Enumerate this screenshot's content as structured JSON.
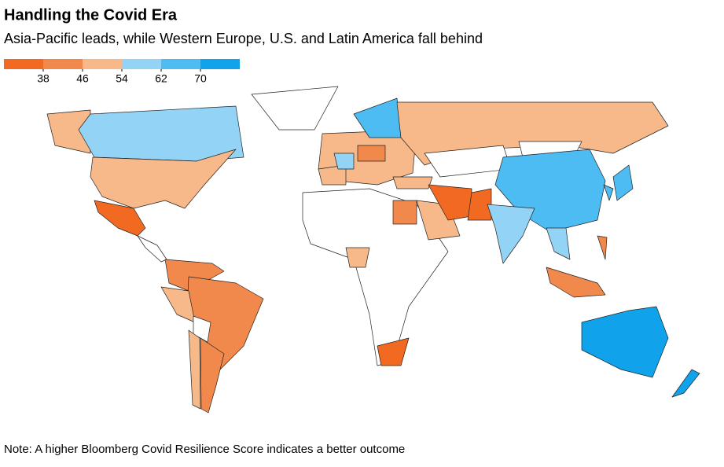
{
  "title": "Handling the Covid Era",
  "subtitle": "Asia-Pacific leads, while Western Europe, U.S. and Latin America fall behind",
  "legend": {
    "colors": [
      "#f26a21",
      "#f2894c",
      "#f8b98a",
      "#93d3f5",
      "#4cbcf2",
      "#10a3ec"
    ],
    "ticks": [
      38,
      46,
      54,
      62,
      70
    ]
  },
  "note": "Note: A higher Bloomberg Covid Resilience Score indicates a better outcome"
}
